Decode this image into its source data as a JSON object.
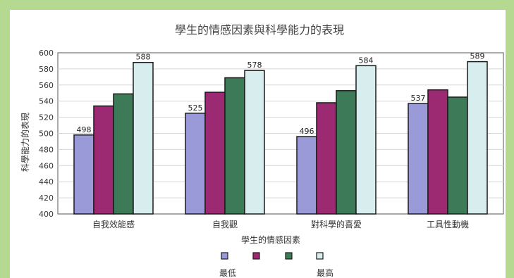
{
  "chart_data": {
    "type": "bar",
    "title": "學生的情感因素與科學能力的表現",
    "xlabel": "學生的情感因素",
    "ylabel": "科學能力的表現",
    "ylim": [
      400,
      600
    ],
    "yticks": [
      400,
      420,
      440,
      460,
      480,
      500,
      520,
      540,
      560,
      580,
      600
    ],
    "categories": [
      "自我效能感",
      "自我觀",
      "對科學的喜愛",
      "工具性動機"
    ],
    "series": [
      {
        "values": [
          498,
          525,
          496,
          537
        ],
        "color": "#9a9ad8",
        "labels": [
          "498",
          "525",
          "496",
          "537"
        ]
      },
      {
        "values": [
          534,
          551,
          538,
          554
        ],
        "color": "#9c2a72",
        "labels": [
          "",
          "",
          "",
          ""
        ]
      },
      {
        "values": [
          549,
          569,
          553,
          545
        ],
        "color": "#3d7a58",
        "labels": [
          "",
          "",
          "",
          ""
        ]
      },
      {
        "values": [
          588,
          578,
          584,
          589
        ],
        "color": "#d8eeee",
        "labels": [
          "588",
          "578",
          "584",
          "589"
        ]
      }
    ],
    "grid": true,
    "legend": {
      "placement": "bottom",
      "low_label": "最低",
      "high_label": "最高"
    }
  }
}
